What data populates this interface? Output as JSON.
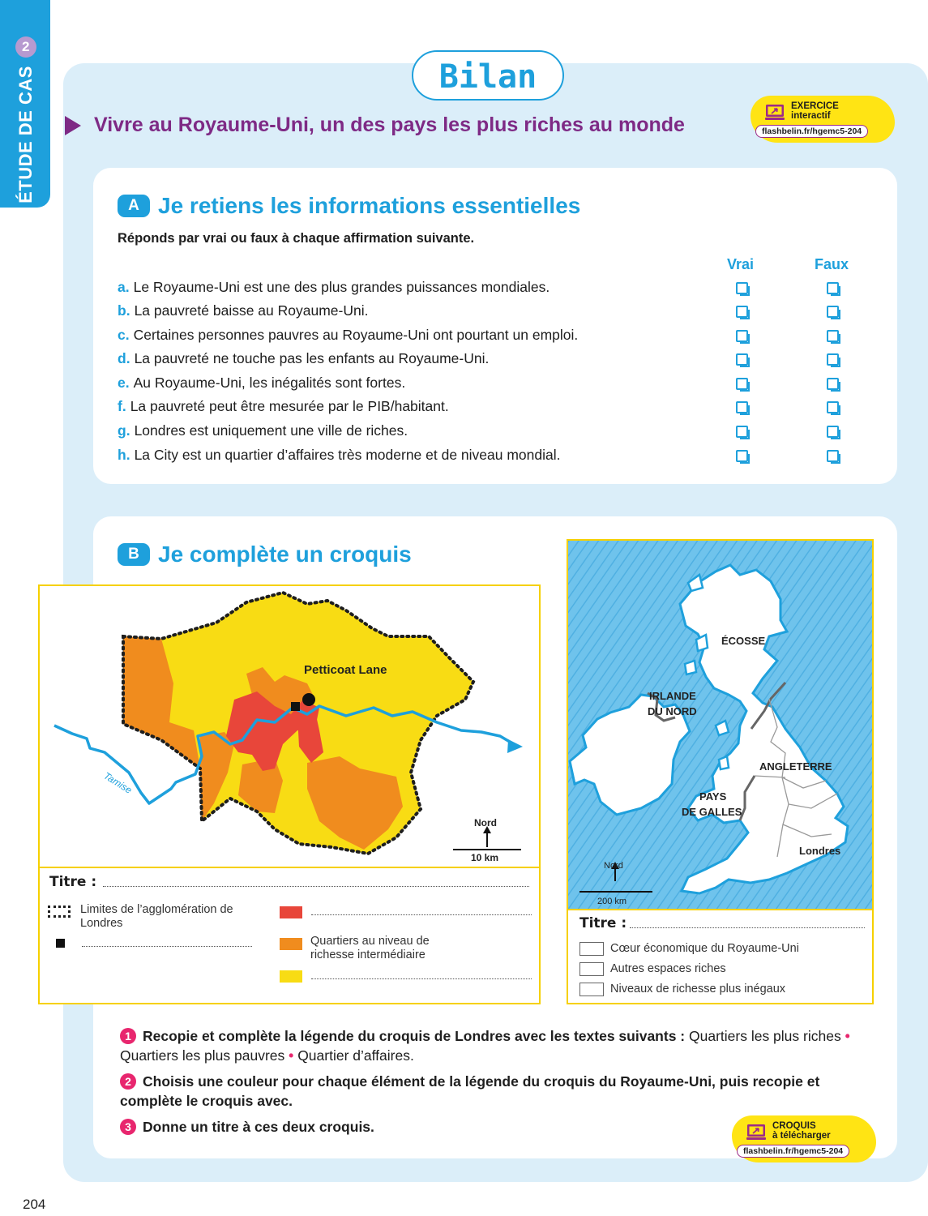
{
  "side_tab": {
    "label": "ÉTUDE DE CAS",
    "number": "2"
  },
  "page_title": "Bilan",
  "subtitle": "Vivre au Royaume-Uni, un des pays les plus riches au monde",
  "badge_top": {
    "line1": "EXERCICE",
    "line2": "interactif",
    "url": "flashbelin.fr/hgemc5-204"
  },
  "section_a": {
    "letter": "A",
    "title": "Je retiens les informations essentielles",
    "instruction": "Réponds par vrai ou faux à chaque affirmation suivante.",
    "col_true": "Vrai",
    "col_false": "Faux",
    "questions": [
      {
        "letter": "a.",
        "text": "Le Royaume-Uni est une des plus grandes puissances mondiales."
      },
      {
        "letter": "b.",
        "text": "La pauvreté baisse au Royaume-Uni."
      },
      {
        "letter": "c.",
        "text": "Certaines personnes pauvres au Royaume-Uni ont pourtant un emploi."
      },
      {
        "letter": "d.",
        "text": "La pauvreté ne touche pas les enfants au Royaume-Uni."
      },
      {
        "letter": "e.",
        "text": "Au Royaume-Uni, les inégalités sont fortes."
      },
      {
        "letter": "f.",
        "text": "La pauvreté peut être mesurée par le PIB/habitant."
      },
      {
        "letter": "g.",
        "text": "Londres est uniquement une ville de riches."
      },
      {
        "letter": "h.",
        "text": "La City est un quartier d’affaires très moderne et de niveau mondial."
      }
    ]
  },
  "section_b": {
    "letter": "B",
    "title": "Je complète un croquis"
  },
  "london_map": {
    "place": "Petticoat Lane",
    "river": "Tamise",
    "north": "Nord",
    "scale": "10 km",
    "title_label": "Titre :",
    "legend": {
      "limits": "Limites de l’agglomération de Londres",
      "intermediate": "Quartiers au niveau de richesse intermédiaire",
      "colors": {
        "limits": "#1e1e1e",
        "poorest": "#e8463a",
        "intermediate": "#f08c1e",
        "richest": "#f8dc14"
      }
    }
  },
  "uk_map": {
    "labels": {
      "scotland": "ÉCOSSE",
      "ni_1": "IRLANDE",
      "ni_2": "DU NORD",
      "england": "ANGLETERRE",
      "wales_1": "PAYS",
      "wales_2": "DE GALLES",
      "london": "Londres"
    },
    "north": "Nord",
    "scale": "200 km",
    "title_label": "Titre :",
    "legend": [
      "Cœur économique du Royaume-Uni",
      "Autres espaces riches",
      "Niveaux de richesse plus inégaux"
    ]
  },
  "tasks": [
    {
      "num": "1",
      "bold": "Recopie et complète la légende du croquis de Londres avec les textes suivants :",
      "items": [
        "Quartiers les plus riches",
        "Quartiers les plus pauvres",
        "Quartier d’affaires."
      ],
      "separator": "•"
    },
    {
      "num": "2",
      "bold": "Choisis une couleur pour chaque élément de la légende du croquis du Royaume-Uni, puis recopie et complète le croquis avec."
    },
    {
      "num": "3",
      "bold": "Donne un titre à ces deux croquis."
    }
  ],
  "badge_bottom": {
    "line1": "CROQUIS",
    "line2": "à télécharger",
    "url": "flashbelin.fr/hgemc5-204"
  },
  "page_number": "204"
}
